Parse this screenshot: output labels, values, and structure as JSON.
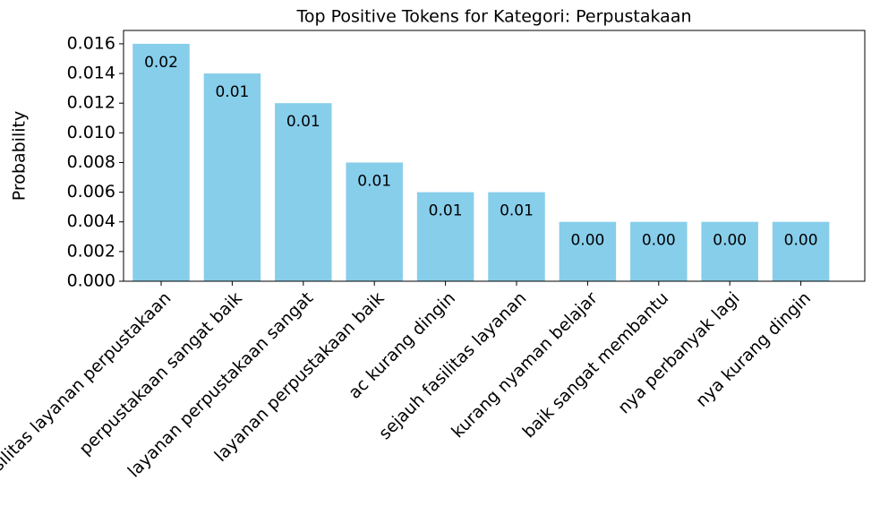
{
  "chart_data": {
    "type": "bar",
    "title": "Top Positive Tokens for Kategori: Perpustakaan",
    "y_label": "Probability",
    "categories": [
      "fasilitas layanan perpustakaan",
      "perpustakaan sangat baik",
      "layanan perpustakaan sangat",
      "layanan perpustakaan baik",
      "ac kurang dingin",
      "sejauh fasilitas layanan",
      "kurang nyaman belajar",
      "baik sangat membantu",
      "nya perbanyak lagi",
      "nya kurang dingin"
    ],
    "values": [
      0.016,
      0.014,
      0.012,
      0.008,
      0.006,
      0.006,
      0.004,
      0.004,
      0.004,
      0.004
    ],
    "value_labels": [
      "0.02",
      "0.01",
      "0.01",
      "0.01",
      "0.01",
      "0.01",
      "0.00",
      "0.00",
      "0.00",
      "0.00"
    ],
    "color": "#87ceeb",
    "ylim": [
      0,
      0.0169
    ],
    "yticks": [
      {
        "value": 0,
        "label": "0.000"
      },
      {
        "value": 0.002,
        "label": "0.002"
      },
      {
        "value": 0.004,
        "label": "0.004"
      },
      {
        "value": 0.006,
        "label": "0.006"
      },
      {
        "value": 0.008,
        "label": "0.008"
      },
      {
        "value": 0.01,
        "label": "0.010"
      },
      {
        "value": 0.012,
        "label": "0.012"
      },
      {
        "value": 0.014,
        "label": "0.014"
      },
      {
        "value": 0.016,
        "label": "0.016"
      }
    ]
  }
}
